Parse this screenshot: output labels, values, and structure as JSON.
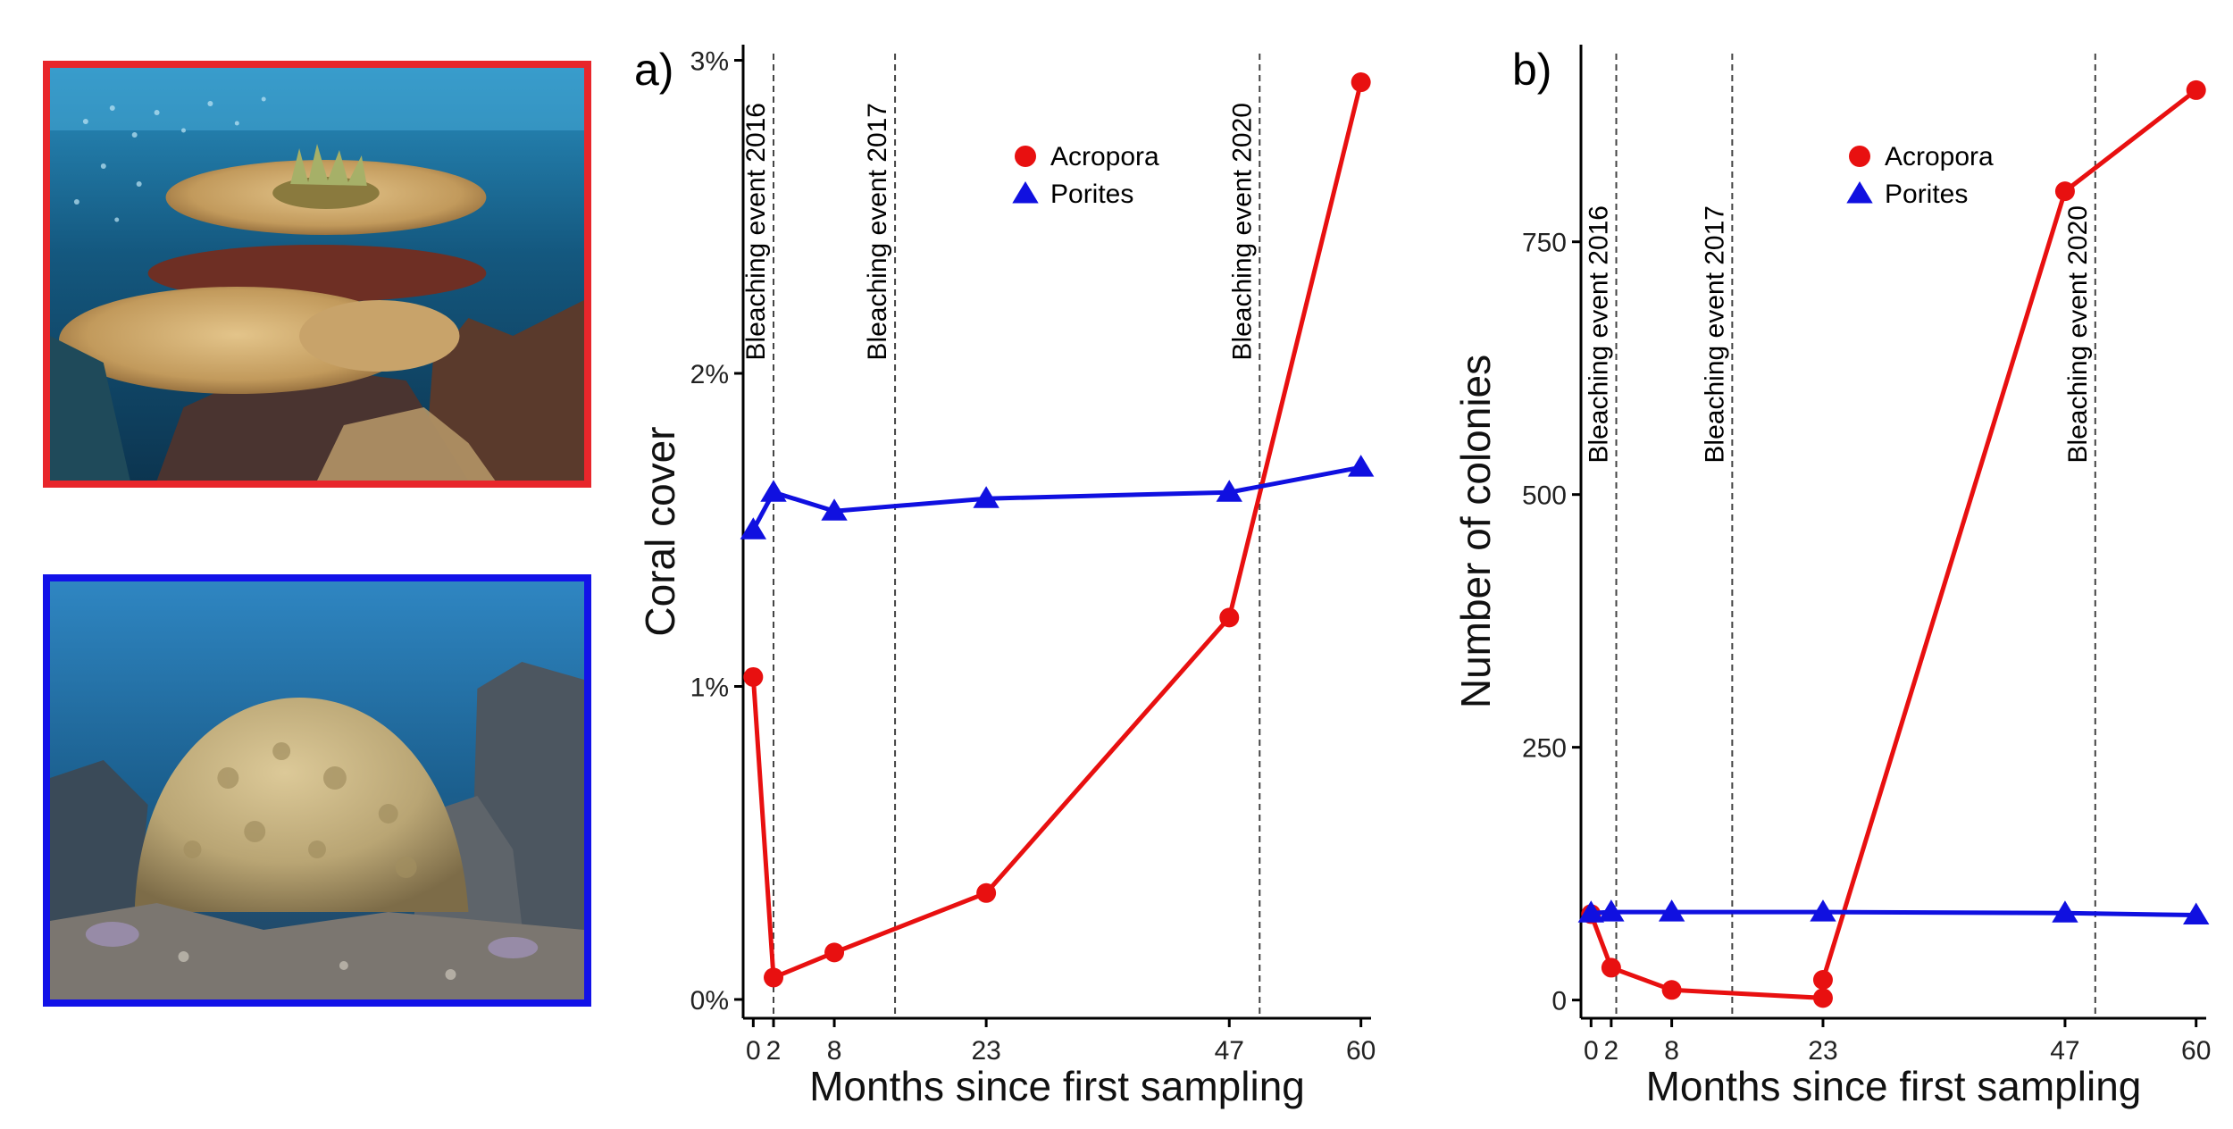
{
  "photos": [
    {
      "name": "acropora-photo",
      "frame_color": "#e8262b"
    },
    {
      "name": "porites-photo",
      "frame_color": "#1212e8"
    }
  ],
  "colors": {
    "acropora": "#e81010",
    "porites": "#1010e0",
    "axis": "#000000",
    "event_line": "#444444"
  },
  "chart_data": [
    {
      "panel": "a)",
      "type": "line",
      "xlabel": "Months since first sampling",
      "ylabel": "Coral cover",
      "xlim": [
        -1,
        61
      ],
      "ylim": [
        -0.06,
        3.05
      ],
      "x_ticks": [
        0,
        2,
        8,
        23,
        47,
        60
      ],
      "y_ticks": [
        0,
        1,
        2,
        3
      ],
      "y_tick_labels": [
        "0%",
        "1%",
        "2%",
        "3%"
      ],
      "legend_position": "top-right",
      "events": [
        {
          "x": 2.0,
          "label": "Bleaching event 2016"
        },
        {
          "x": 14.0,
          "label": "Bleaching event 2017"
        },
        {
          "x": 50.0,
          "label": "Bleaching event 2020"
        }
      ],
      "series": [
        {
          "name": "Acropora",
          "marker": "circle",
          "x": [
            0,
            2,
            8,
            23,
            47,
            60
          ],
          "y": [
            1.03,
            0.07,
            0.15,
            0.34,
            1.22,
            2.93
          ]
        },
        {
          "name": "Porites",
          "marker": "triangle",
          "x": [
            0,
            2,
            8,
            23,
            47,
            60
          ],
          "y": [
            1.5,
            1.62,
            1.56,
            1.6,
            1.62,
            1.7
          ]
        }
      ]
    },
    {
      "panel": "b)",
      "type": "line",
      "xlabel": "Months since first sampling",
      "ylabel": "Number of colonies",
      "xlim": [
        -1,
        61
      ],
      "ylim": [
        -18,
        945
      ],
      "x_ticks": [
        0,
        2,
        8,
        23,
        47,
        60
      ],
      "y_ticks": [
        0,
        250,
        500,
        750
      ],
      "y_tick_labels": [
        "0",
        "250",
        "500",
        "750"
      ],
      "legend_position": "top-right",
      "events": [
        {
          "x": 2.5,
          "label": "Bleaching event 2016"
        },
        {
          "x": 14.0,
          "label": "Bleaching event 2017"
        },
        {
          "x": 50.0,
          "label": "Bleaching event 2020"
        }
      ],
      "series": [
        {
          "name": "Acropora",
          "marker": "circle",
          "x": [
            0,
            2,
            8,
            23,
            23,
            47,
            60
          ],
          "y": [
            85,
            32,
            10,
            2,
            20,
            800,
            900
          ]
        },
        {
          "name": "Porites",
          "marker": "triangle",
          "x": [
            0,
            2,
            8,
            23,
            47,
            60
          ],
          "y": [
            86,
            87,
            87,
            87,
            86,
            84
          ]
        }
      ]
    }
  ]
}
